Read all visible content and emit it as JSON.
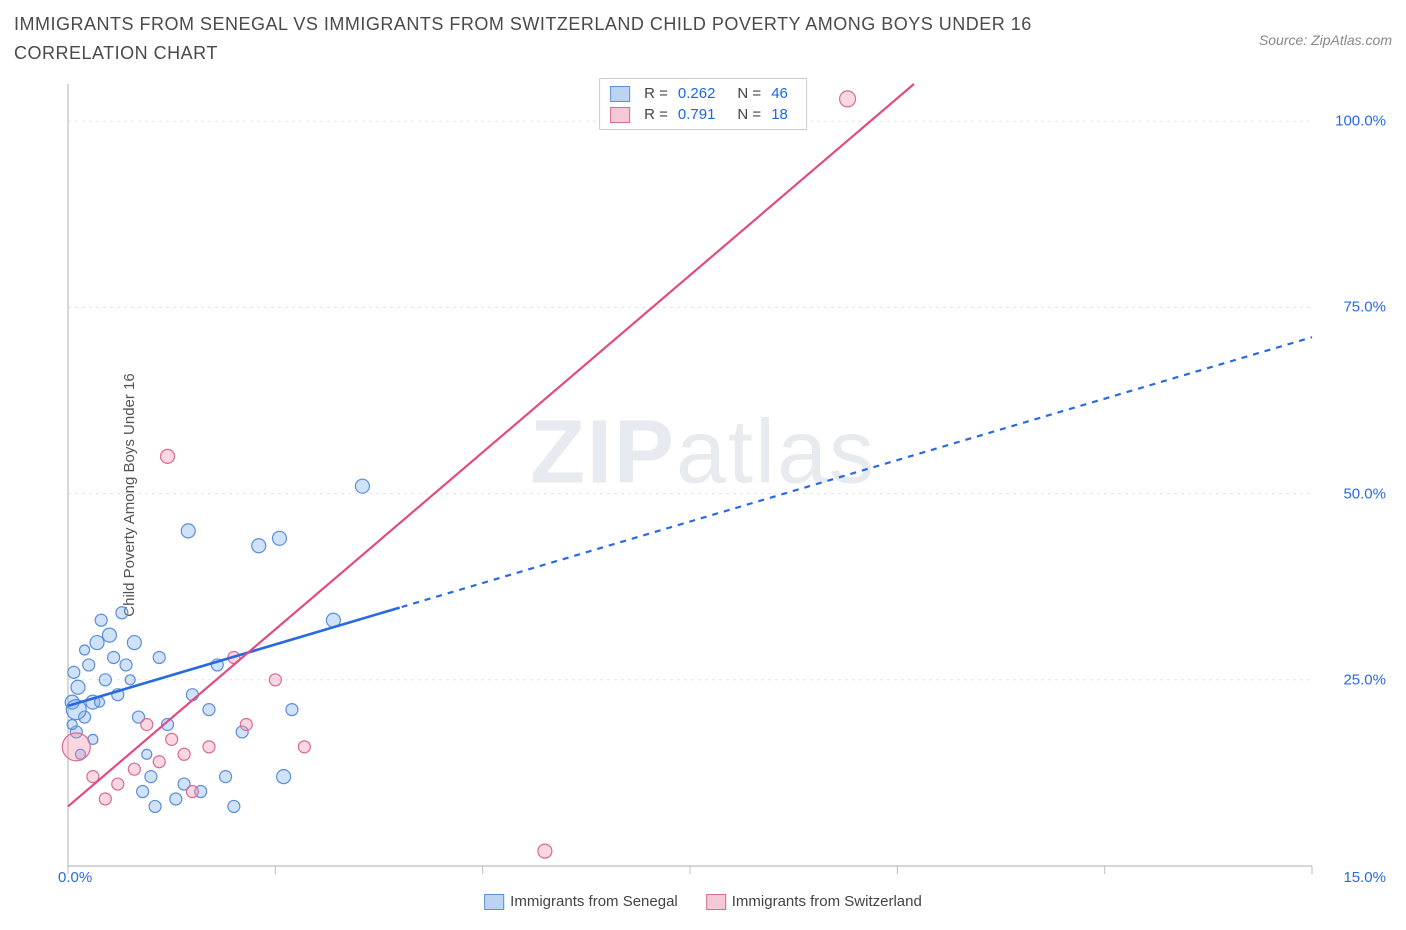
{
  "title": "IMMIGRANTS FROM SENEGAL VS IMMIGRANTS FROM SWITZERLAND CHILD POVERTY AMONG BOYS UNDER 16 CORRELATION CHART",
  "source": "Source: ZipAtlas.com",
  "ylabel": "Child Poverty Among Boys Under 16",
  "watermark_bold": "ZIP",
  "watermark_light": "atlas",
  "chart": {
    "type": "scatter",
    "xlim": [
      0,
      15
    ],
    "ylim": [
      0,
      105
    ],
    "x_tick_positions": [
      0,
      2.5,
      5,
      7.5,
      10,
      12.5,
      15
    ],
    "x_start_label": "0.0%",
    "x_end_label": "15.0%",
    "y_ticks": [
      {
        "v": 25,
        "label": "25.0%"
      },
      {
        "v": 50,
        "label": "50.0%"
      },
      {
        "v": 75,
        "label": "75.0%"
      },
      {
        "v": 100,
        "label": "100.0%"
      }
    ],
    "grid_color": "#e4e4e4",
    "axis_color": "#bdbdbd",
    "background": "#ffffff",
    "series": [
      {
        "name": "Immigrants from Senegal",
        "fill": "rgba(120,170,240,0.35)",
        "stroke": "#5a8fd6",
        "swatch_fill": "#bcd4f2",
        "swatch_border": "#5a8fd6",
        "r_stat": "0.262",
        "n_stat": "46",
        "trend_dash": "6 6",
        "trend_color": "#2a6ae0",
        "trend": {
          "x1": 0,
          "y1": 21.5,
          "x2": 15,
          "y2": 71
        },
        "solid_segment": {
          "x1": 0,
          "y1": 21.5,
          "x2": 4.0,
          "y2": 34.7
        },
        "points": [
          {
            "x": 0.05,
            "y": 22,
            "r": 7
          },
          {
            "x": 0.1,
            "y": 18,
            "r": 6
          },
          {
            "x": 0.12,
            "y": 24,
            "r": 7
          },
          {
            "x": 0.2,
            "y": 20,
            "r": 6
          },
          {
            "x": 0.25,
            "y": 27,
            "r": 6
          },
          {
            "x": 0.3,
            "y": 22,
            "r": 7
          },
          {
            "x": 0.35,
            "y": 30,
            "r": 7
          },
          {
            "x": 0.4,
            "y": 33,
            "r": 6
          },
          {
            "x": 0.45,
            "y": 25,
            "r": 6
          },
          {
            "x": 0.5,
            "y": 31,
            "r": 7
          },
          {
            "x": 0.55,
            "y": 28,
            "r": 6
          },
          {
            "x": 0.6,
            "y": 23,
            "r": 6
          },
          {
            "x": 0.65,
            "y": 34,
            "r": 6
          },
          {
            "x": 0.7,
            "y": 27,
            "r": 6
          },
          {
            "x": 0.8,
            "y": 30,
            "r": 7
          },
          {
            "x": 0.85,
            "y": 20,
            "r": 6
          },
          {
            "x": 0.9,
            "y": 10,
            "r": 6
          },
          {
            "x": 1.0,
            "y": 12,
            "r": 6
          },
          {
            "x": 1.05,
            "y": 8,
            "r": 6
          },
          {
            "x": 1.1,
            "y": 28,
            "r": 6
          },
          {
            "x": 1.2,
            "y": 19,
            "r": 6
          },
          {
            "x": 1.3,
            "y": 9,
            "r": 6
          },
          {
            "x": 1.4,
            "y": 11,
            "r": 6
          },
          {
            "x": 1.45,
            "y": 45,
            "r": 7
          },
          {
            "x": 1.5,
            "y": 23,
            "r": 6
          },
          {
            "x": 1.6,
            "y": 10,
            "r": 6
          },
          {
            "x": 1.7,
            "y": 21,
            "r": 6
          },
          {
            "x": 1.8,
            "y": 27,
            "r": 6
          },
          {
            "x": 1.9,
            "y": 12,
            "r": 6
          },
          {
            "x": 2.0,
            "y": 8,
            "r": 6
          },
          {
            "x": 2.1,
            "y": 18,
            "r": 6
          },
          {
            "x": 2.3,
            "y": 43,
            "r": 7
          },
          {
            "x": 2.55,
            "y": 44,
            "r": 7
          },
          {
            "x": 2.6,
            "y": 12,
            "r": 7
          },
          {
            "x": 2.7,
            "y": 21,
            "r": 6
          },
          {
            "x": 3.2,
            "y": 33,
            "r": 7
          },
          {
            "x": 3.55,
            "y": 51,
            "r": 7
          },
          {
            "x": 0.15,
            "y": 15,
            "r": 5
          },
          {
            "x": 0.2,
            "y": 29,
            "r": 5
          },
          {
            "x": 0.3,
            "y": 17,
            "r": 5
          },
          {
            "x": 0.38,
            "y": 22,
            "r": 5
          },
          {
            "x": 0.07,
            "y": 26,
            "r": 6
          },
          {
            "x": 0.05,
            "y": 19,
            "r": 5
          },
          {
            "x": 0.75,
            "y": 25,
            "r": 5
          },
          {
            "x": 0.95,
            "y": 15,
            "r": 5
          },
          {
            "x": 0.1,
            "y": 21,
            "r": 10
          }
        ]
      },
      {
        "name": "Immigrants from Switzerland",
        "fill": "rgba(240,140,170,0.35)",
        "stroke": "#d96a93",
        "swatch_fill": "#f5c8d6",
        "swatch_border": "#d96a93",
        "r_stat": "0.791",
        "n_stat": "18",
        "trend_dash": "",
        "trend_color": "#e14a85",
        "trend": {
          "x1": 0,
          "y1": 8,
          "x2": 10.2,
          "y2": 105
        },
        "points": [
          {
            "x": 0.1,
            "y": 16,
            "r": 14
          },
          {
            "x": 0.3,
            "y": 12,
            "r": 6
          },
          {
            "x": 0.45,
            "y": 9,
            "r": 6
          },
          {
            "x": 0.6,
            "y": 11,
            "r": 6
          },
          {
            "x": 0.8,
            "y": 13,
            "r": 6
          },
          {
            "x": 0.95,
            "y": 19,
            "r": 6
          },
          {
            "x": 1.1,
            "y": 14,
            "r": 6
          },
          {
            "x": 1.25,
            "y": 17,
            "r": 6
          },
          {
            "x": 1.2,
            "y": 55,
            "r": 7
          },
          {
            "x": 1.4,
            "y": 15,
            "r": 6
          },
          {
            "x": 1.5,
            "y": 10,
            "r": 6
          },
          {
            "x": 1.7,
            "y": 16,
            "r": 6
          },
          {
            "x": 2.0,
            "y": 28,
            "r": 6
          },
          {
            "x": 2.15,
            "y": 19,
            "r": 6
          },
          {
            "x": 2.5,
            "y": 25,
            "r": 6
          },
          {
            "x": 2.85,
            "y": 16,
            "r": 6
          },
          {
            "x": 5.75,
            "y": 2,
            "r": 7
          },
          {
            "x": 9.4,
            "y": 103,
            "r": 8
          }
        ]
      }
    ]
  }
}
